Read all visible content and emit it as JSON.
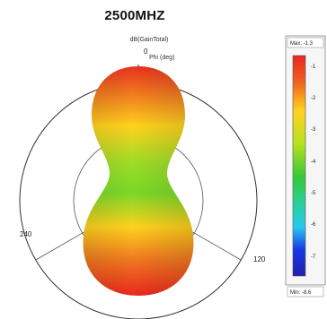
{
  "chart_data": {
    "type": "polar-3d-radiation-pattern",
    "title": "2500MHZ",
    "quantity_label": "dB(GainTotal)",
    "axis_label": "Phi (deg)",
    "angle_ticks": [
      "0",
      "120",
      "240"
    ],
    "colorbar": {
      "max_label": "Max: -1.3",
      "min_label": "Min: -8.6",
      "ticks": [
        "-1",
        "-2",
        "-3",
        "-4",
        "-5",
        "-6",
        "-7"
      ],
      "min": -8.6,
      "max": -1.3,
      "colors": [
        "#e8281e",
        "#f06020",
        "#ffd21e",
        "#b8e020",
        "#38c838",
        "#28d0a0",
        "#28c8f0",
        "#1838e8",
        "#2020a8"
      ]
    }
  }
}
